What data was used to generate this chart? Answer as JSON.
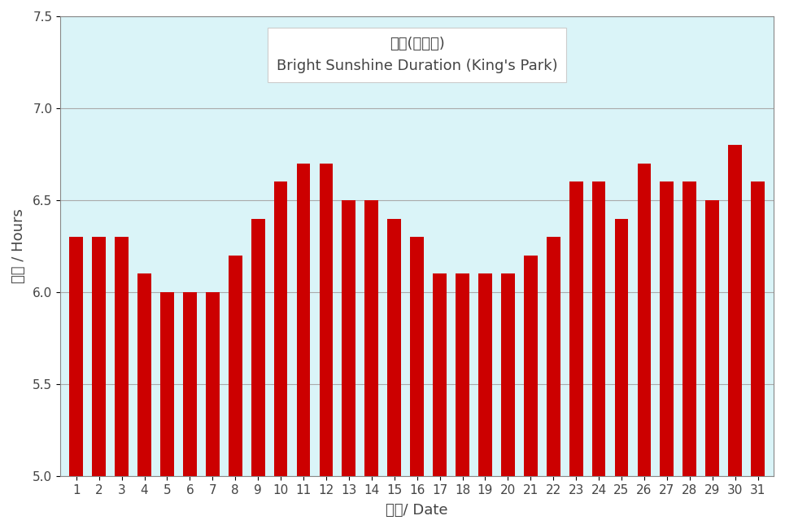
{
  "values": [
    6.3,
    6.3,
    6.3,
    6.1,
    6.0,
    6.0,
    6.0,
    6.2,
    6.4,
    6.6,
    6.7,
    6.7,
    6.5,
    6.5,
    6.4,
    6.3,
    6.1,
    6.1,
    6.1,
    6.1,
    6.2,
    6.3,
    6.6,
    6.6,
    6.4,
    6.7,
    6.6,
    6.6,
    6.5,
    6.8,
    6.6
  ],
  "days": [
    1,
    2,
    3,
    4,
    5,
    6,
    7,
    8,
    9,
    10,
    11,
    12,
    13,
    14,
    15,
    16,
    17,
    18,
    19,
    20,
    21,
    22,
    23,
    24,
    25,
    26,
    27,
    28,
    29,
    30,
    31
  ],
  "bar_color": "#cc0000",
  "background_color": "#ffffff",
  "plot_bg_color": "#daf4f8",
  "ylabel": "小時 / Hours",
  "xlabel": "日期/ Date",
  "legend_line1": "日照(京士柏)",
  "legend_line2": "Bright Sunshine Duration (King's Park)",
  "ylim_min": 5.0,
  "ylim_max": 7.5,
  "yticks": [
    5.0,
    5.5,
    6.0,
    6.5,
    7.0,
    7.5
  ],
  "grid_color": "#aaaaaa",
  "bar_width": 0.6,
  "text_color": "#444444",
  "legend_fontsize_line1": 14,
  "legend_fontsize_line2": 13,
  "axis_label_fontsize": 13,
  "tick_fontsize": 11
}
